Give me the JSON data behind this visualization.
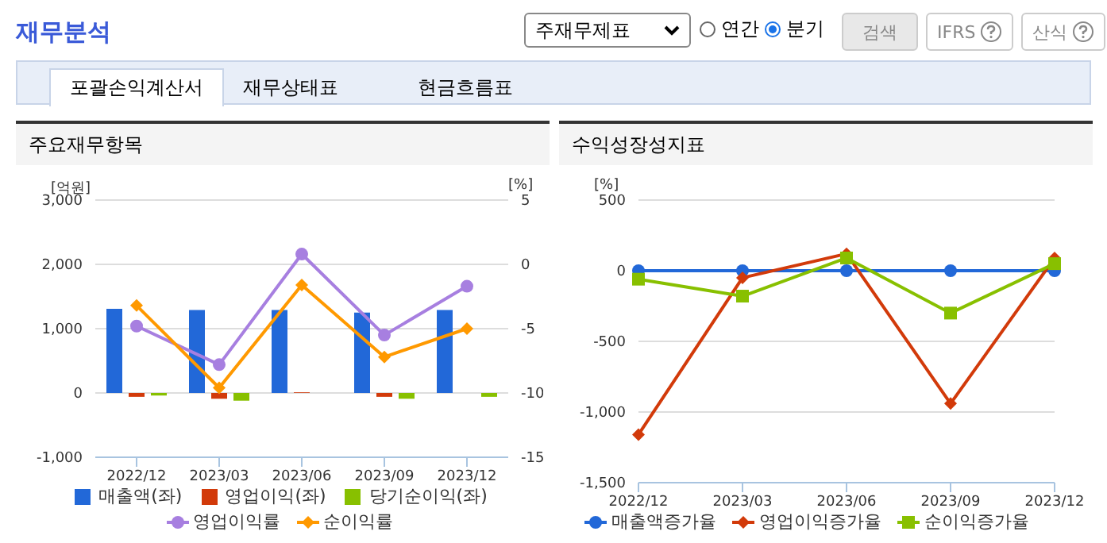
{
  "chart_data": [
    {
      "type": "other",
      "title": "재무분석",
      "annotations": [
        "주재무제표",
        "연간",
        "분기",
        "검색",
        "IFRS",
        "산식",
        "포괄손익계산서",
        "재무상태표",
        "현금흐름표"
      ]
    },
    {
      "type": "bar",
      "title": "주요재무항목",
      "ylabel": "[억원]",
      "y2label": "[%]",
      "categories": [
        "2022/12",
        "2023/03",
        "2023/06",
        "2023/09",
        "2023/12"
      ],
      "series": [
        {
          "name": "매출액(좌)",
          "color": "#2268d8",
          "values": [
            1310,
            1290,
            1290,
            1250,
            1290
          ]
        },
        {
          "name": "영업이익(좌)",
          "color": "#d23a0a",
          "values": [
            -60,
            -90,
            10,
            -60,
            0
          ]
        },
        {
          "name": "당기순이익(좌)",
          "color": "#88c000",
          "values": [
            -40,
            -120,
            0,
            -90,
            -60
          ]
        },
        {
          "name": "영업이익률",
          "type": "line",
          "axis": "y2",
          "marker": "circle",
          "color": "#a77fe0",
          "values": [
            -4.8,
            -7.8,
            0.8,
            -5.5,
            -1.7
          ]
        },
        {
          "name": "순이익률",
          "type": "line",
          "axis": "y2",
          "marker": "diamond",
          "color": "#ff9900",
          "values": [
            -3.2,
            -9.6,
            -1.6,
            -7.2,
            -5.0
          ]
        }
      ],
      "ylim": [
        -1000,
        3000
      ],
      "yticks": [
        {
          "value": -1000,
          "label": "-1,000"
        },
        0,
        {
          "value": 1000,
          "label": "1,000"
        },
        {
          "value": 2000,
          "label": "2,000"
        },
        {
          "value": 3000,
          "label": "3,000"
        }
      ],
      "y2lim": [
        -15,
        5
      ],
      "y2ticks": [
        -15,
        -10,
        -5,
        0,
        5
      ],
      "grid": "y",
      "legend": "bottom"
    },
    {
      "type": "line",
      "title": "수익성장성지표",
      "ylabel": "[%]",
      "categories": [
        "2022/12",
        "2023/03",
        "2023/06",
        "2023/09",
        "2023/12"
      ],
      "series": [
        {
          "name": "매출액증가율",
          "color": "#2268d8",
          "marker": "circle",
          "values": [
            0,
            0,
            0,
            0,
            0
          ]
        },
        {
          "name": "영업이익증가율",
          "color": "#d23a0a",
          "marker": "diamond",
          "values": [
            -1160,
            -50,
            120,
            -940,
            90
          ]
        },
        {
          "name": "순이익증가율",
          "color": "#88c000",
          "marker": "square",
          "values": [
            -60,
            -180,
            90,
            -300,
            50
          ]
        }
      ],
      "ylim": [
        -1500,
        500
      ],
      "yticks": [
        {
          "value": -1500,
          "label": "-1,500"
        },
        {
          "value": -1000,
          "label": "-1,000"
        },
        -500,
        0,
        500
      ],
      "grid": "y",
      "legend": "bottom"
    }
  ]
}
